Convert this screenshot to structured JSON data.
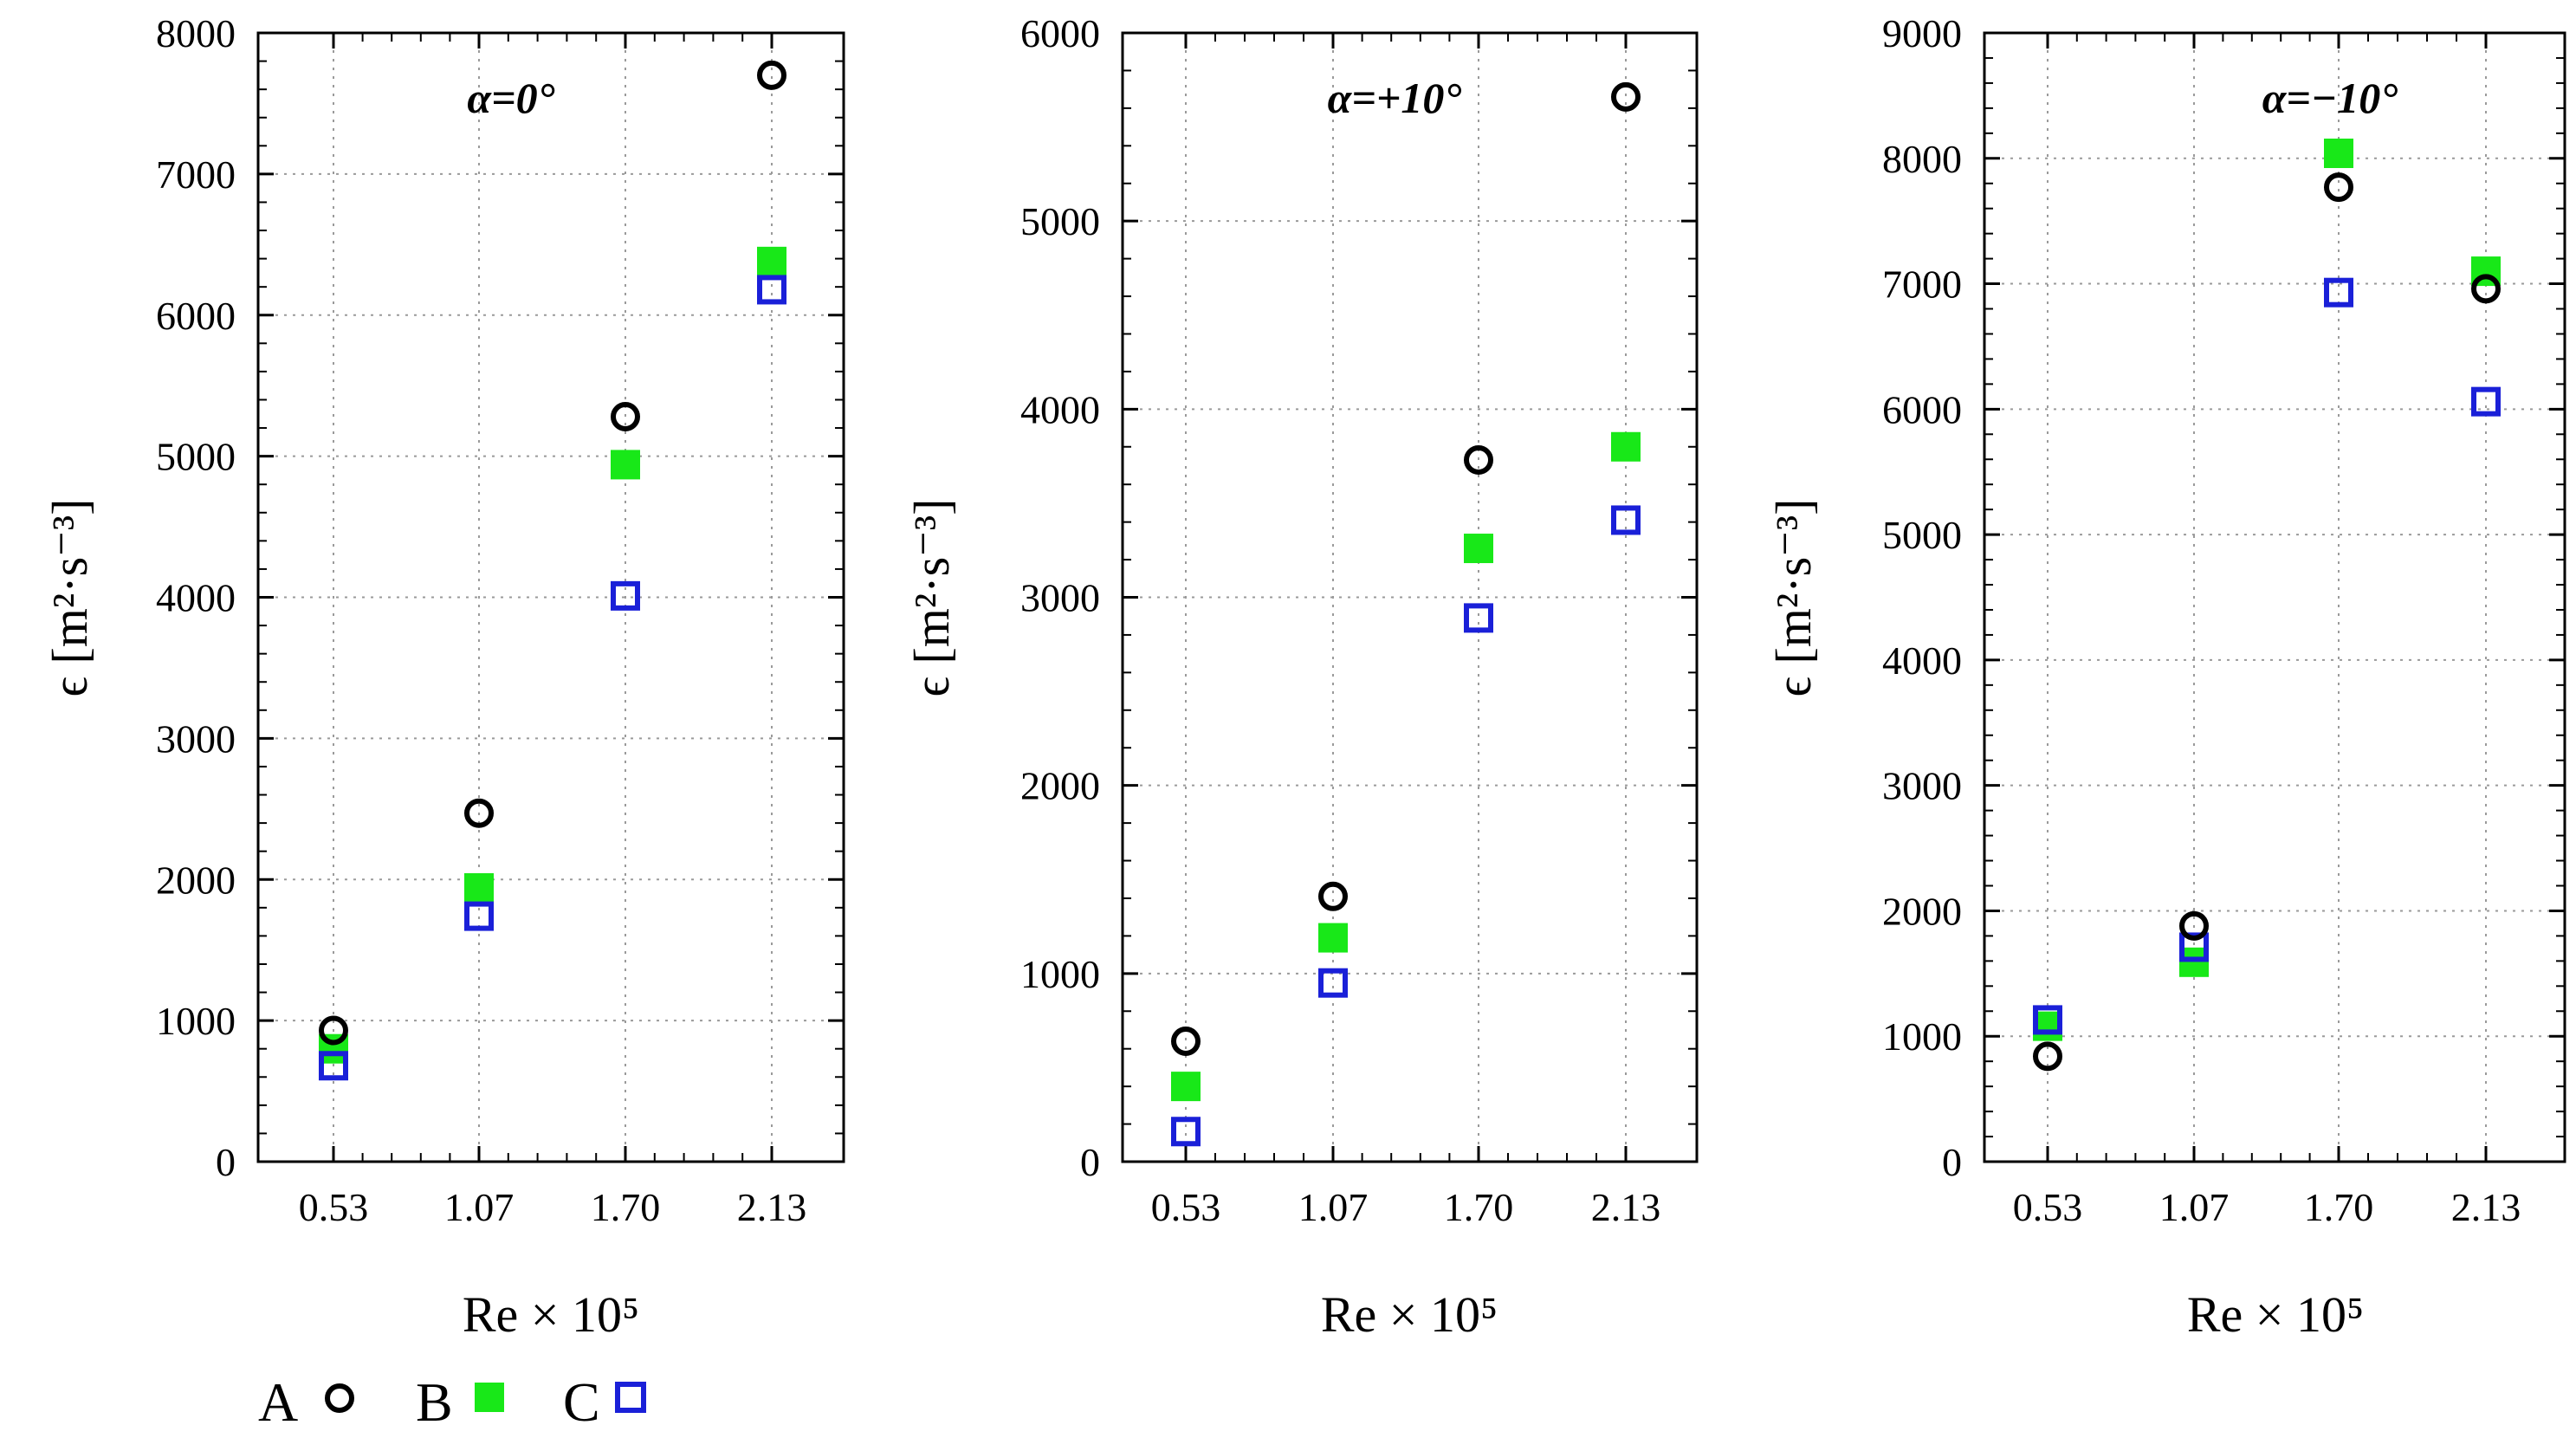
{
  "chart_data": [
    {
      "type": "scatter",
      "title": "α=0°",
      "xlabel": "Re × 10⁵",
      "ylabel": "ϵ [m²·s⁻³]",
      "categories": [
        "0.53",
        "1.07",
        "1.70",
        "2.13"
      ],
      "ylim": [
        0,
        8000
      ],
      "yticks": [
        0,
        1000,
        2000,
        3000,
        4000,
        5000,
        6000,
        7000,
        8000
      ],
      "grid": true,
      "series": [
        {
          "name": "A",
          "values": [
            930,
            2470,
            5280,
            7700
          ]
        },
        {
          "name": "B",
          "values": [
            800,
            1940,
            4940,
            6380
          ]
        },
        {
          "name": "C",
          "values": [
            680,
            1740,
            4010,
            6180
          ]
        }
      ]
    },
    {
      "type": "scatter",
      "title": "α=+10°",
      "xlabel": "Re × 10⁵",
      "ylabel": "ϵ [m²·s⁻³]",
      "categories": [
        "0.53",
        "1.07",
        "1.70",
        "2.13"
      ],
      "ylim": [
        0,
        6000
      ],
      "yticks": [
        0,
        1000,
        2000,
        3000,
        4000,
        5000,
        6000
      ],
      "grid": true,
      "series": [
        {
          "name": "A",
          "values": [
            640,
            1410,
            3730,
            5660
          ]
        },
        {
          "name": "B",
          "values": [
            400,
            1190,
            3260,
            3800
          ]
        },
        {
          "name": "C",
          "values": [
            160,
            950,
            2890,
            3410
          ]
        }
      ]
    },
    {
      "type": "scatter",
      "title": "α=−10°",
      "xlabel": "Re × 10⁵",
      "ylabel": "ϵ [m²·s⁻³]",
      "categories": [
        "0.53",
        "1.07",
        "1.70",
        "2.13"
      ],
      "ylim": [
        0,
        9000
      ],
      "yticks": [
        0,
        1000,
        2000,
        3000,
        4000,
        5000,
        6000,
        7000,
        8000,
        9000
      ],
      "grid": true,
      "series": [
        {
          "name": "A",
          "values": [
            840,
            1880,
            7770,
            6960
          ]
        },
        {
          "name": "B",
          "values": [
            1080,
            1590,
            8040,
            7100
          ]
        },
        {
          "name": "C",
          "values": [
            1130,
            1710,
            6930,
            6060
          ]
        }
      ]
    }
  ],
  "legend": {
    "placement": "bottom-left",
    "items": [
      {
        "label": "A",
        "marker": "open-circle",
        "color": "#000000"
      },
      {
        "label": "B",
        "marker": "filled-square",
        "color": "#18e818"
      },
      {
        "label": "C",
        "marker": "open-square",
        "color": "#1a20d8"
      }
    ]
  },
  "colors": {
    "A": "#000000",
    "B": "#18e818",
    "C": "#1a20d8",
    "grid": "#9a9a9a"
  }
}
